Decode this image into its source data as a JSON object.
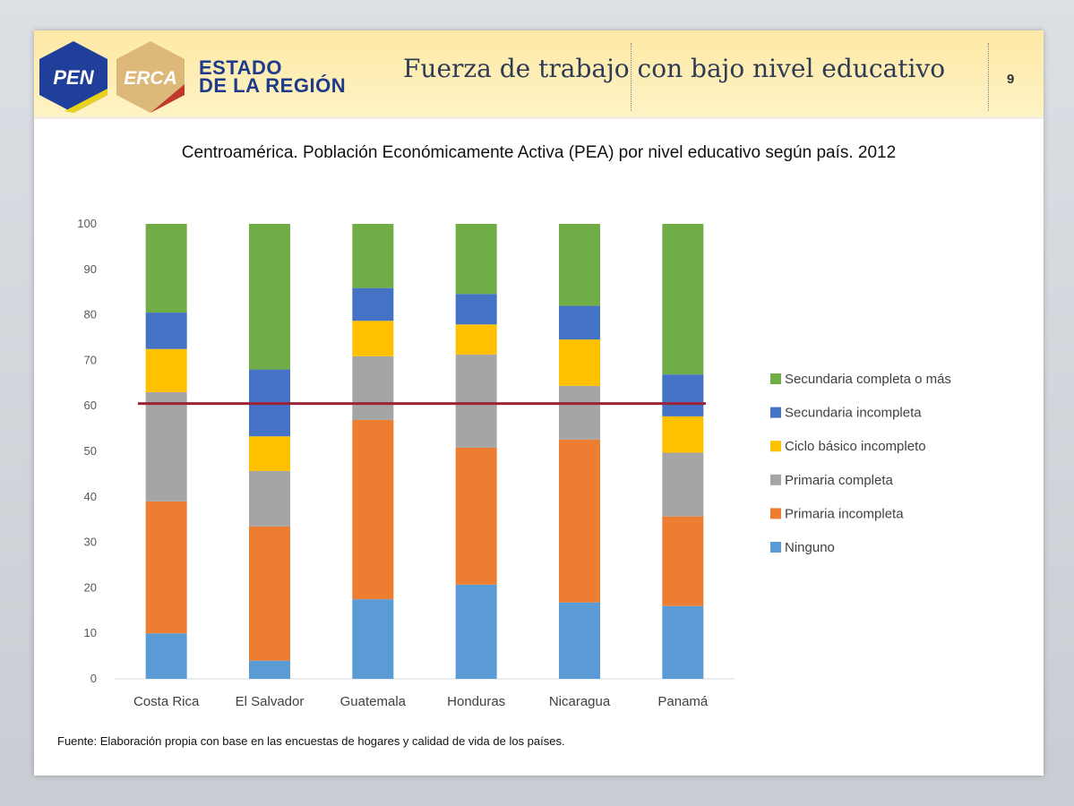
{
  "header": {
    "logo_pen": "PEN",
    "logo_erca": "ERCA",
    "brand_line1": "ESTADO",
    "brand_line2": "DE LA REGIÓN",
    "title": "Fuerza de trabajo con bajo nivel educativo",
    "page_number": "9"
  },
  "source": "Fuente: Elaboración propia con base en las encuestas de hogares y calidad de vida de los países.",
  "chart_data": {
    "type": "bar",
    "stacked": true,
    "title": "Centroamérica. Población Económicamente Activa (PEA) por nivel educativo según país. 2012",
    "xlabel": "",
    "ylabel": "",
    "ylim": [
      0,
      100
    ],
    "yticks": [
      "0",
      "10",
      "20",
      "30",
      "40",
      "50",
      "60",
      "70",
      "80",
      "90",
      "100"
    ],
    "categories": [
      "Costa Rica",
      "El Salvador",
      "Guatemala",
      "Honduras",
      "Nicaragua",
      "Panamá"
    ],
    "series": [
      {
        "name": "Ninguno",
        "color": "#5b9bd5",
        "values": [
          10,
          4,
          17.5,
          20.7,
          16.8,
          16
        ]
      },
      {
        "name": "Primaria incompleta",
        "color": "#ed7d31",
        "values": [
          29,
          29.5,
          39.4,
          30.1,
          35.8,
          19.7
        ]
      },
      {
        "name": "Primaria completa",
        "color": "#a5a5a5",
        "values": [
          24,
          12.2,
          14,
          20.5,
          11.8,
          14
        ]
      },
      {
        "name": "Ciclo básico incompleto",
        "color": "#ffc000",
        "values": [
          9.5,
          7.6,
          7.8,
          6.6,
          10.2,
          8
        ]
      },
      {
        "name": "Secundaria incompleta",
        "color": "#4472c4",
        "values": [
          8,
          14.7,
          7.2,
          6.7,
          7.4,
          9.2
        ]
      },
      {
        "name": "Secundaria completa o más",
        "color": "#70ad47",
        "values": [
          19.5,
          32,
          14.1,
          15.4,
          18,
          33.1
        ]
      }
    ],
    "reference_line": {
      "value": 60.5,
      "color": "#9b2335"
    },
    "legend_position": "right"
  }
}
